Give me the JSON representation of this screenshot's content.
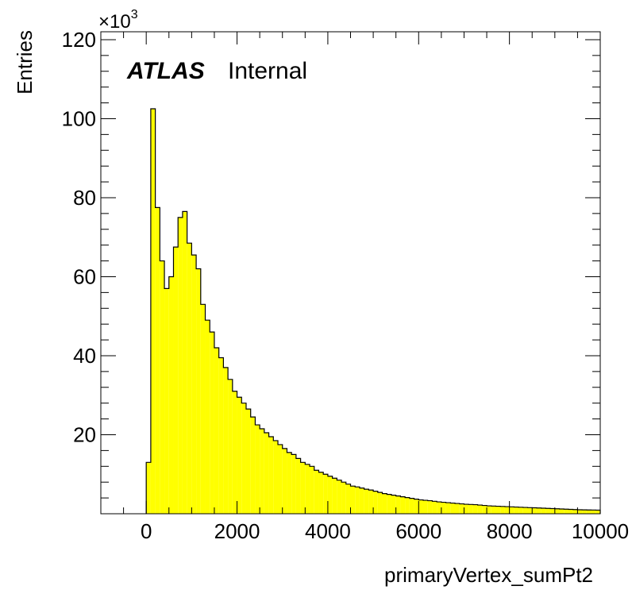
{
  "header": {
    "experiment": "ATLAS",
    "status": "Internal"
  },
  "chart_data": {
    "type": "bar",
    "style": "step-histogram",
    "xlabel": "primaryVertex_sumPt2",
    "ylabel": "Entries",
    "y_multiplier_label": "×10",
    "y_multiplier_exponent": "3",
    "xlim": [
      -1000,
      10000
    ],
    "ylim": [
      0,
      122000
    ],
    "x_ticks": [
      0,
      2000,
      4000,
      6000,
      8000,
      10000
    ],
    "x_tick_labels": [
      "0",
      "2000",
      "4000",
      "6000",
      "8000",
      "10000"
    ],
    "y_ticks": [
      20000,
      40000,
      60000,
      80000,
      100000,
      120000
    ],
    "y_tick_labels": [
      "20",
      "40",
      "60",
      "80",
      "100",
      "120"
    ],
    "bin_width": 100,
    "bin_start": 0,
    "values": [
      13000,
      102500,
      77500,
      64000,
      57000,
      60000,
      67500,
      75000,
      76500,
      68500,
      65500,
      62000,
      53000,
      49000,
      46000,
      42000,
      39500,
      37000,
      34000,
      31000,
      29500,
      28000,
      26500,
      24500,
      22500,
      21500,
      20500,
      19500,
      18500,
      17500,
      16500,
      15500,
      15000,
      14000,
      13000,
      12500,
      12000,
      11000,
      10500,
      10000,
      9500,
      9000,
      8500,
      8000,
      7500,
      7000,
      6800,
      6500,
      6200,
      6000,
      5700,
      5400,
      5100,
      4900,
      4700,
      4500,
      4300,
      4100,
      3900,
      3700,
      3500,
      3400,
      3300,
      3150,
      3000,
      2900,
      2800,
      2700,
      2600,
      2500,
      2400,
      2350,
      2300,
      2200,
      2100,
      2000,
      1950,
      1900,
      1850,
      1800,
      1750,
      1700,
      1650,
      1600,
      1550,
      1500,
      1450,
      1400,
      1350,
      1300,
      1250,
      1200,
      1150,
      1100,
      1050,
      1000,
      980,
      960,
      940,
      920
    ],
    "fill_color": "#ffff00",
    "line_color": "#000000",
    "grid": false,
    "legend": "none"
  }
}
